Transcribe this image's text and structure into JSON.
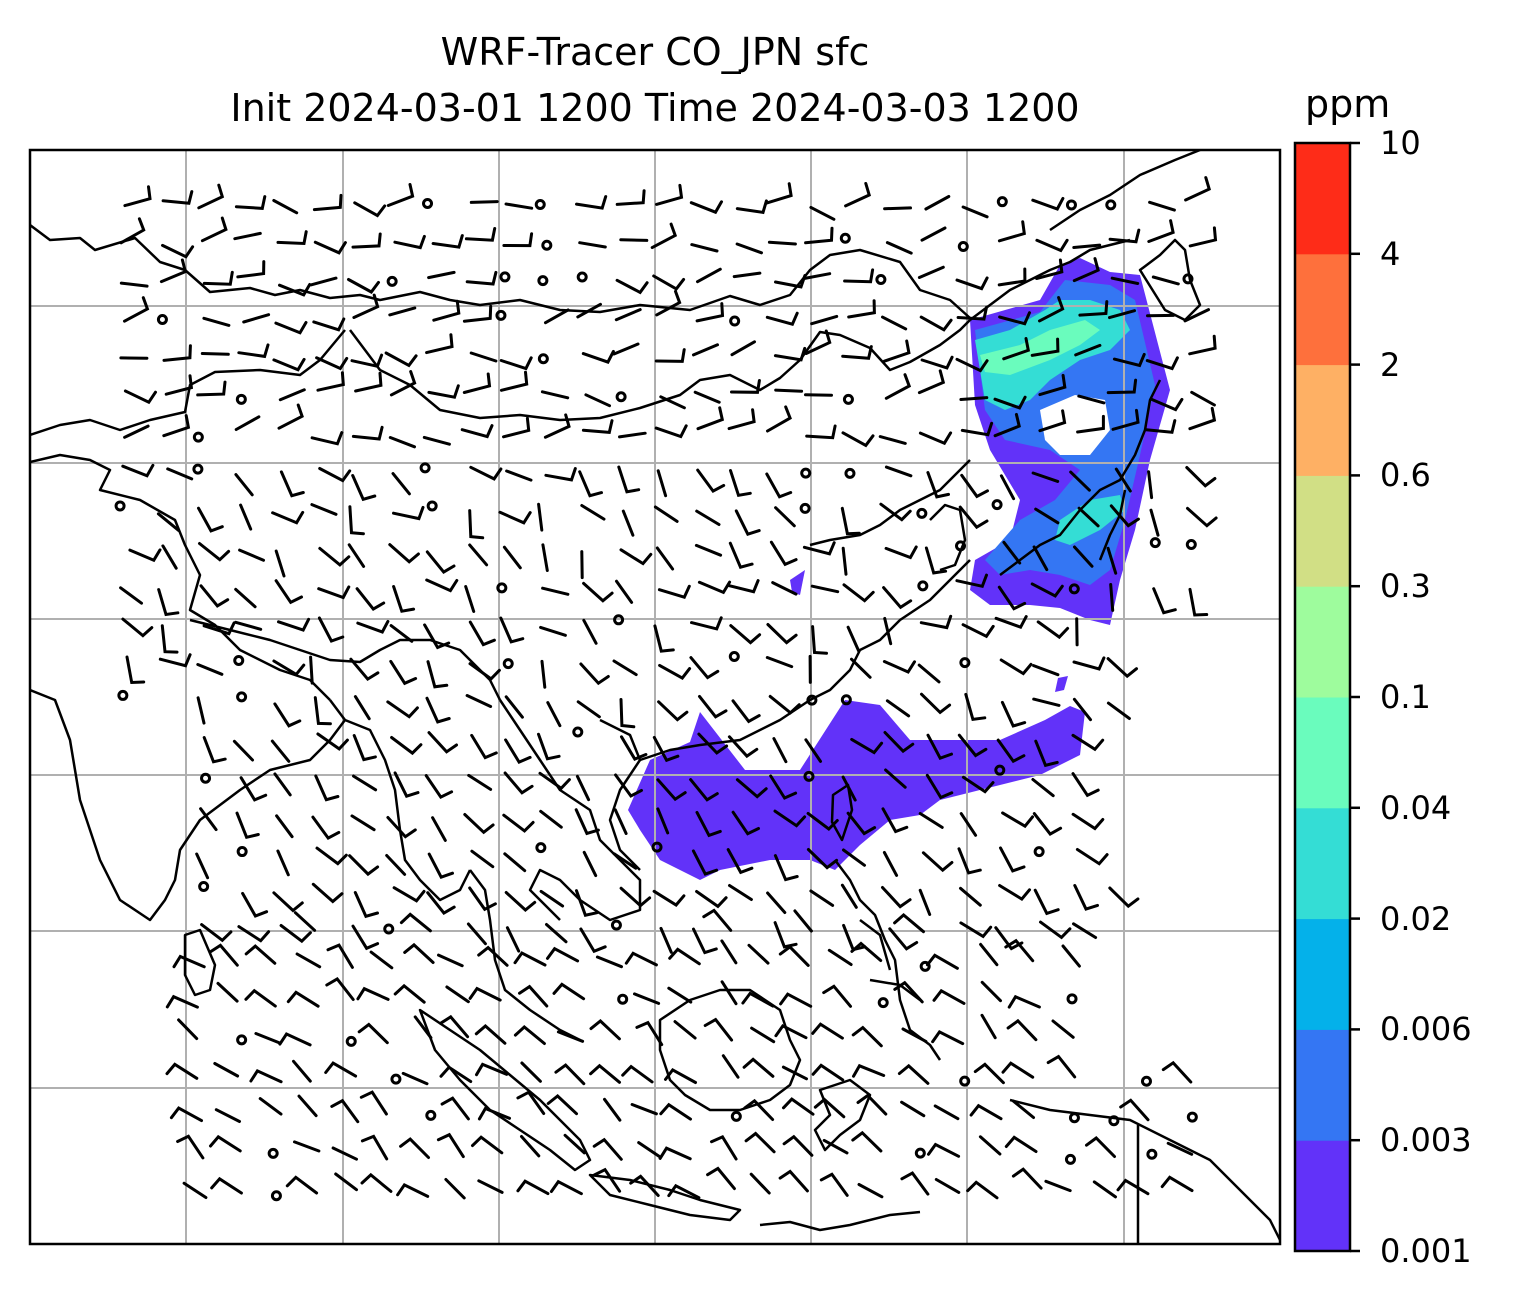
{
  "title": {
    "line1": "WRF-Tracer CO_JPN sfc",
    "line2": "Init 2024-03-01 1200 Time 2024-03-03 1200"
  },
  "colorbar": {
    "unit": "ppm",
    "levels": [
      "0.001",
      "0.003",
      "0.006",
      "0.02",
      "0.04",
      "0.1",
      "0.3",
      "0.6",
      "2",
      "4",
      "10"
    ],
    "colors": [
      "#6232f9",
      "#3476f3",
      "#04b1ea",
      "#34ddd5",
      "#6afcbd",
      "#9efc9d",
      "#d1df85",
      "#feb064",
      "#fe703c",
      "#fe2c18"
    ]
  },
  "map": {
    "gridlines": true,
    "tracer_plumes": [
      {
        "region": "Japan and Sea of Japan",
        "max_level": "0.04"
      },
      {
        "region": "South China Sea to Pacific east of Taiwan",
        "max_level": "0.003"
      }
    ],
    "wind_barbs": true
  }
}
